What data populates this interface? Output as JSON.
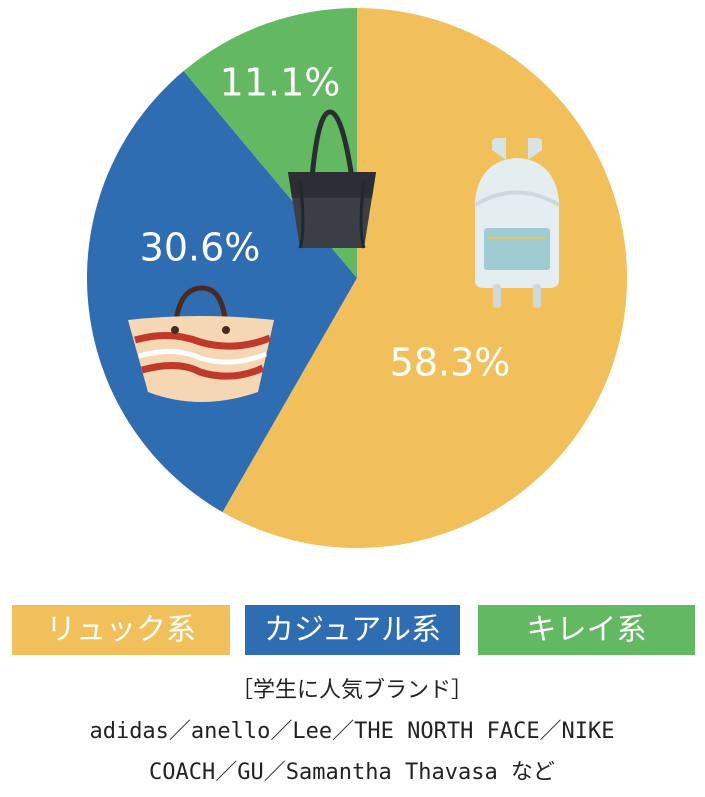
{
  "chart_data": {
    "type": "pie",
    "categories": [
      "リュック系",
      "カジュアル系",
      "キレイ系"
    ],
    "values": [
      58.3,
      30.6,
      11.1
    ],
    "value_labels": [
      "58.3%",
      "30.6%",
      "11.1%"
    ],
    "colors": [
      "#f2c05a",
      "#2f6db3",
      "#63b862"
    ],
    "notes": [
      "［学生に人気ブランド］",
      "adidas／anello／Lee／THE NORTH FACE／NIKE",
      "COACH／GU／Samantha Thavasa など"
    ]
  }
}
